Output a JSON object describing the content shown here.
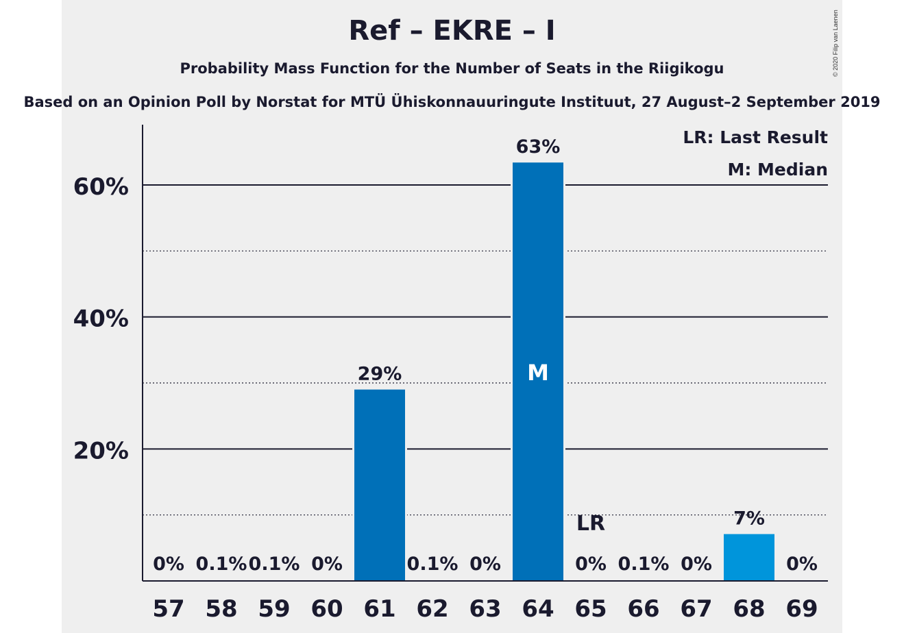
{
  "chart_data": {
    "type": "bar",
    "title": "Ref – EKRE – I",
    "subtitle": "Probability Mass Function for the Number of Seats in the Riigikogu",
    "source": "Based on an Opinion Poll by Norstat for MTÜ Ühiskonnauuringute Instituut, 27 August–2 September 2019",
    "copyright": "© 2020 Filip van Laenen",
    "categories": [
      "57",
      "58",
      "59",
      "60",
      "61",
      "62",
      "63",
      "64",
      "65",
      "66",
      "67",
      "68",
      "69"
    ],
    "values": [
      0,
      0.1,
      0.1,
      0,
      29,
      0.1,
      0,
      63.4,
      0,
      0.1,
      0,
      7.1,
      0
    ],
    "value_labels": [
      "0%",
      "0.1%",
      "0.1%",
      "0%",
      "29%",
      "0.1%",
      "0%",
      "63%",
      "0%",
      "0.1%",
      "0%",
      "7%",
      "0%"
    ],
    "ylim": [
      0,
      68
    ],
    "yticks": [
      20,
      40,
      60
    ],
    "ytick_labels": [
      "20%",
      "40%",
      "60%"
    ],
    "minor_gridlines": [
      10,
      30,
      50
    ],
    "median_category": "64",
    "median_marker": "M",
    "last_result_category": "65",
    "last_result_marker": "LR",
    "legend": [
      "LR: Last Result",
      "M: Median"
    ],
    "legend_position": "top-right",
    "colors": {
      "bar": "#0070b8",
      "bar_highlight": "#0095db",
      "panel": "#efefef",
      "text": "#1a1a2e"
    },
    "highlight_category": "68"
  }
}
